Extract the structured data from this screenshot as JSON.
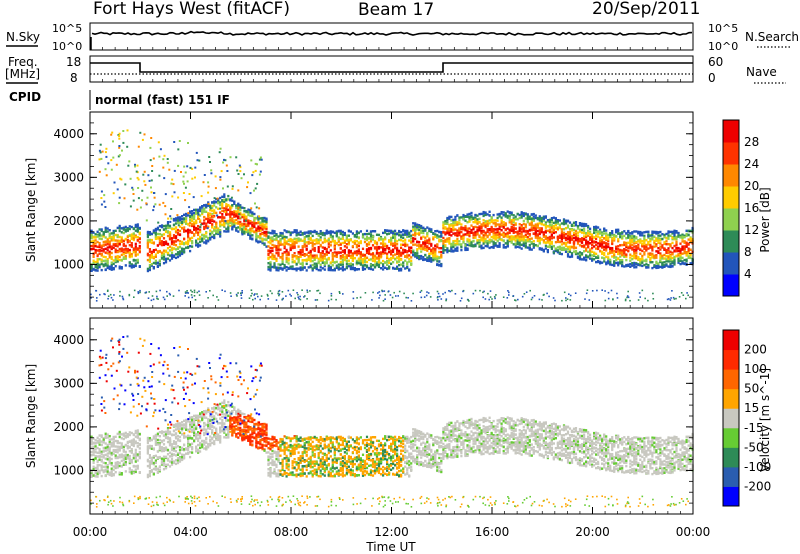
{
  "header": {
    "station": "Fort Hays West (fitACF)",
    "beam": "Beam 17",
    "date": "20/Sep/2011"
  },
  "top_panels": {
    "nsky_label": "N.Sky",
    "nsearch_label": "N.Search",
    "nsky_ticks": [
      "10^5",
      "10^0"
    ],
    "nsearch_ticks": [
      "10^5",
      "10^0"
    ],
    "freq_label_1": "Freq.",
    "freq_label_2": "[MHz]",
    "freq_ticks": [
      "18",
      "8"
    ],
    "nave_label": "Nave",
    "nave_ticks": [
      "60",
      "0"
    ],
    "cpid_label": "CPID",
    "cpid_text": "normal (fast) 151 IF"
  },
  "chart_data": [
    {
      "type": "heatmap",
      "name": "power",
      "ylabel": "Slant Range [km]",
      "yticks": [
        1000,
        2000,
        3000,
        4000
      ],
      "ylim": [
        0,
        4500
      ],
      "colorbar_label": "Power [dB]",
      "colorbar_ticks": [
        4,
        8,
        12,
        16,
        20,
        24,
        28
      ],
      "colorbar_colors": [
        "#0000ff",
        "#2255bb",
        "#2e8b57",
        "#8fd14f",
        "#ffcc00",
        "#ff8800",
        "#ff3300",
        "#ee0000"
      ]
    },
    {
      "type": "heatmap",
      "name": "velocity",
      "ylabel": "Slant Range [km]",
      "yticks": [
        1000,
        2000,
        3000,
        4000
      ],
      "ylim": [
        0,
        4500
      ],
      "colorbar_label": "Velocity [m s^-1]",
      "colorbar_ticks": [
        200,
        100,
        50,
        15,
        -15,
        -50,
        -100,
        -200
      ],
      "colorbar_colors": [
        "#0000ff",
        "#2a5db0",
        "#2e8b57",
        "#66cc33",
        "#c8c8c0",
        "#ffa500",
        "#ff6600",
        "#ff2a00",
        "#ee0000"
      ]
    }
  ],
  "xaxis": {
    "label": "Time UT",
    "ticks": [
      "00:00",
      "04:00",
      "08:00",
      "12:00",
      "16:00",
      "20:00",
      "00:00"
    ]
  }
}
